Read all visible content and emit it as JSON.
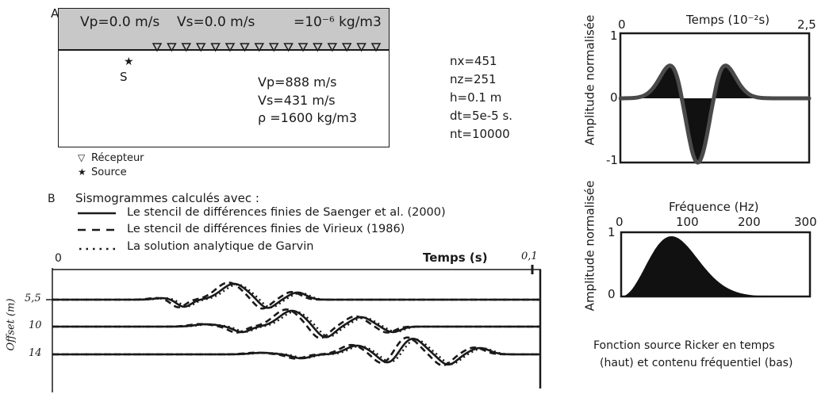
{
  "panel_a": {
    "label": "A",
    "layer1": {
      "vp": "Vp=0.0 m/s",
      "vs": "Vs=0.0 m/s",
      "rho": "=10⁻⁶ kg/m3"
    },
    "layer2": {
      "vp": "Vp=888 m/s",
      "vs": "Vs=431 m/s",
      "rho": "ρ =1600 kg/m3"
    },
    "source_label": "S",
    "receiver_count": 16,
    "legend": {
      "receiver_label": "Récepteur",
      "source_label": "Source"
    }
  },
  "params": [
    "nx=451",
    "nz=251",
    "h=0.1 m",
    "dt=5e-5 s.",
    "nt=10000"
  ],
  "panel_b": {
    "label": "B",
    "title": "Sismogrammes calculés avec :",
    "legend": [
      {
        "style": "solid",
        "label": "Le stencil de différences finies de Saenger et al. (2000)"
      },
      {
        "style": "dashed",
        "label": "Le stencil de différences finies de Virieux (1986)"
      },
      {
        "style": "dotted",
        "label": "La solution analytique de Garvin"
      }
    ],
    "xlabel": "Temps (s)",
    "x_start": "0",
    "x_end": "0,1",
    "ylabel": "Offset (m)",
    "offsets": [
      "5,5",
      "10",
      "14"
    ]
  },
  "time_plot": {
    "ylabel": "Amplitude normalisée",
    "xlabel": "Temps (10⁻²s)",
    "x_start": "0",
    "x_end": "2,5",
    "y_ticks": [
      "1",
      "0",
      "-1"
    ]
  },
  "freq_plot": {
    "ylabel": "Amplitude normalisée",
    "xlabel": "Fréquence (Hz)",
    "x_ticks": [
      "0",
      "100",
      "200",
      "300"
    ],
    "y_ticks": [
      "1",
      "0"
    ]
  },
  "caption_line1": "Fonction source Ricker en temps",
  "caption_line2": "(haut) et contenu fréquentiel (bas)",
  "colors": {
    "ink": "#1a1a1a",
    "layer_fill": "#c8c8c8",
    "wavelet": "#4a4a4a"
  }
}
